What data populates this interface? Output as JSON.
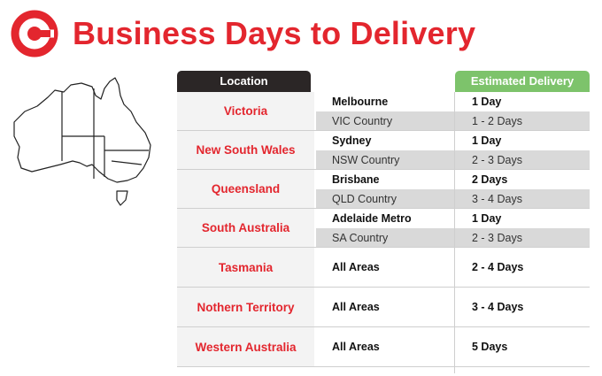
{
  "header": {
    "title": "Business Days to Delivery",
    "brand_color": "#e3262e",
    "logo_icon": "g-logo-icon"
  },
  "map": {
    "icon": "australia-map-icon"
  },
  "table": {
    "col_location": "Location",
    "col_estimated": "Estimated Delivery",
    "header_dark": "#2b2626",
    "header_green": "#7dc36b",
    "rows": [
      {
        "location": "Victoria",
        "sub": [
          {
            "area": "Melbourne",
            "days": "1 Day"
          },
          {
            "area": "VIC Country",
            "days": "1 - 2 Days"
          }
        ]
      },
      {
        "location": "New South Wales",
        "sub": [
          {
            "area": "Sydney",
            "days": "1 Day"
          },
          {
            "area": "NSW Country",
            "days": "2 - 3 Days"
          }
        ]
      },
      {
        "location": "Queensland",
        "sub": [
          {
            "area": "Brisbane",
            "days": "2 Days"
          },
          {
            "area": "QLD Country",
            "days": "3 - 4 Days"
          }
        ]
      },
      {
        "location": "South Australia",
        "sub": [
          {
            "area": "Adelaide Metro",
            "days": "1 Day"
          },
          {
            "area": "SA Country",
            "days": "2 - 3 Days"
          }
        ]
      },
      {
        "location": "Tasmania",
        "area": "All Areas",
        "days": "2 - 4 Days"
      },
      {
        "location": "Nothern Territory",
        "area": "All Areas",
        "days": "3 - 4 Days"
      },
      {
        "location": "Western Australia",
        "area": "All Areas",
        "days": "5 Days"
      }
    ]
  }
}
